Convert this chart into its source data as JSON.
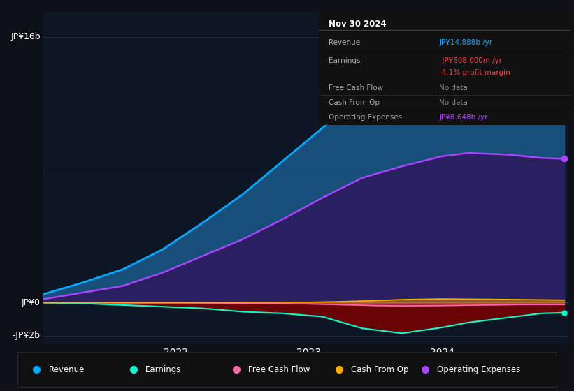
{
  "bg_color": "#0d1117",
  "plot_bg_color": "#0d1624",
  "ylabel_top": "JP¥16b",
  "ylabel_mid": "JP¥0",
  "ylabel_bot": "-JP¥2b",
  "ylim": [
    -2.5,
    17.5
  ],
  "xlim": [
    2021.0,
    2024.95
  ],
  "x_ticks": [
    2022,
    2023,
    2024
  ],
  "revenue_color": "#00aaff",
  "opex_color": "#aa44ff",
  "earnings_color": "#00ffcc",
  "fcf_color": "#ff66aa",
  "cashop_color": "#ffaa00",
  "info_box": {
    "title": "Nov 30 2024",
    "rows": [
      {
        "label": "Revenue",
        "value": "JP¥14.888b /yr",
        "value_color": "#00aaff"
      },
      {
        "label": "Earnings",
        "value": "-JP¥608.000m /yr",
        "value_color": "#ff4444"
      },
      {
        "label": "",
        "value": "-4.1% profit margin",
        "value_color": "#ff4444"
      },
      {
        "label": "Free Cash Flow",
        "value": "No data",
        "value_color": "#888888"
      },
      {
        "label": "Cash From Op",
        "value": "No data",
        "value_color": "#888888"
      },
      {
        "label": "Operating Expenses",
        "value": "JP¥8.648b /yr",
        "value_color": "#aa44ff"
      }
    ]
  },
  "legend_items": [
    {
      "label": "Revenue",
      "color": "#00aaff"
    },
    {
      "label": "Earnings",
      "color": "#00ffcc"
    },
    {
      "label": "Free Cash Flow",
      "color": "#ff66aa"
    },
    {
      "label": "Cash From Op",
      "color": "#ffaa00"
    },
    {
      "label": "Operating Expenses",
      "color": "#aa44ff"
    }
  ],
  "revenue_x": [
    2021.0,
    2021.3,
    2021.6,
    2021.9,
    2022.2,
    2022.5,
    2022.8,
    2023.1,
    2023.4,
    2023.7,
    2024.0,
    2024.2,
    2024.5,
    2024.75,
    2024.92
  ],
  "revenue_y": [
    0.5,
    1.2,
    2.0,
    3.2,
    4.8,
    6.5,
    8.5,
    10.5,
    12.5,
    14.0,
    15.2,
    15.6,
    15.4,
    14.9,
    14.888
  ],
  "opex_x": [
    2021.0,
    2021.3,
    2021.6,
    2021.9,
    2022.2,
    2022.5,
    2022.8,
    2023.1,
    2023.4,
    2023.7,
    2024.0,
    2024.2,
    2024.5,
    2024.75,
    2024.92
  ],
  "opex_y": [
    0.2,
    0.6,
    1.0,
    1.8,
    2.8,
    3.8,
    5.0,
    6.3,
    7.5,
    8.2,
    8.8,
    9.0,
    8.9,
    8.7,
    8.648
  ],
  "earnings_x": [
    2021.0,
    2021.3,
    2021.6,
    2021.9,
    2022.2,
    2022.5,
    2022.8,
    2023.1,
    2023.4,
    2023.7,
    2024.0,
    2024.2,
    2024.5,
    2024.75,
    2024.92
  ],
  "earnings_y": [
    0.0,
    -0.05,
    -0.15,
    -0.25,
    -0.35,
    -0.55,
    -0.65,
    -0.85,
    -1.55,
    -1.85,
    -1.5,
    -1.2,
    -0.9,
    -0.65,
    -0.608
  ],
  "fcf_x": [
    2021.0,
    2021.5,
    2022.0,
    2022.5,
    2023.0,
    2023.2,
    2023.5,
    2023.7,
    2024.0,
    2024.3,
    2024.6,
    2024.92
  ],
  "fcf_y": [
    0.0,
    0.0,
    0.0,
    -0.05,
    -0.08,
    -0.12,
    -0.18,
    -0.2,
    -0.18,
    -0.15,
    -0.12,
    -0.12
  ],
  "cashop_x": [
    2021.0,
    2021.5,
    2022.0,
    2022.5,
    2023.0,
    2023.2,
    2023.5,
    2023.7,
    2024.0,
    2024.3,
    2024.6,
    2024.92
  ],
  "cashop_y": [
    0.0,
    0.0,
    0.0,
    0.01,
    0.02,
    0.05,
    0.12,
    0.18,
    0.22,
    0.2,
    0.18,
    0.15
  ]
}
